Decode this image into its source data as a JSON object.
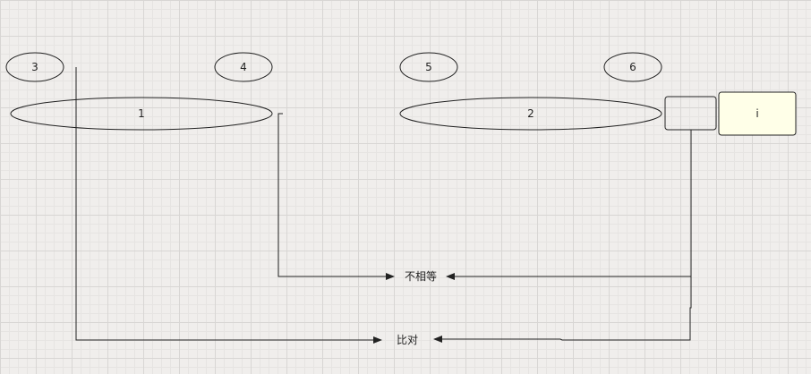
{
  "diagram": {
    "nodes": {
      "node_3": "3",
      "node_4": "4",
      "node_5": "5",
      "node_6": "6",
      "node_1": "1",
      "node_2": "2",
      "node_i": "i",
      "node_blank": ""
    },
    "labels": {
      "not_equal": "不相等",
      "compare": "比对"
    },
    "colors": {
      "stroke": "#222222",
      "highlight_fill": "#ffffe8",
      "background": "#f0eeec"
    }
  }
}
